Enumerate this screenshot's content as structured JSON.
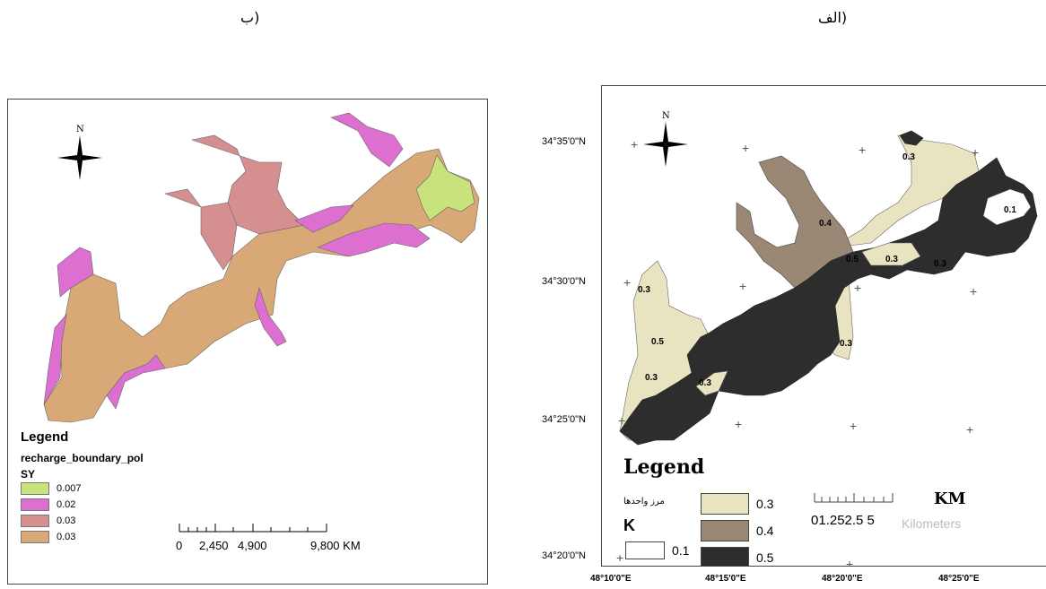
{
  "captions": {
    "left": "ب)",
    "right": "الف)"
  },
  "left_map": {
    "north": "N",
    "legend": {
      "title": "Legend",
      "layer": "recharge_boundary_pol",
      "field": "SY",
      "items": [
        {
          "color": "#c8e27c",
          "label": "0.007"
        },
        {
          "color": "#dc6fd0",
          "label": "0.02"
        },
        {
          "color": "#d68f8f",
          "label": "0.03"
        },
        {
          "color": "#d9a877",
          "label": "0.03"
        }
      ]
    },
    "scalebar": {
      "labels": [
        "0",
        "2,450",
        "4,900",
        "9,800 KM"
      ]
    }
  },
  "right_map": {
    "north": "N",
    "latitudes": [
      "34°35'0\"N",
      "34°30'0\"N",
      "34°25'0\"N",
      "34°20'0\"N"
    ],
    "longitudes": [
      "48°10'0\"E",
      "48°15'0\"E",
      "48°20'0\"E",
      "48°25'0\"E"
    ],
    "zone_labels": [
      "0.3",
      "0.1",
      "0.4",
      "0.3",
      "0.5",
      "0.3",
      "0.3",
      "0.5",
      "0.3",
      "0.3",
      "0.3"
    ],
    "legend": {
      "title": "Legend",
      "arabic_label": "مرز واحدها",
      "field": "K",
      "items": [
        {
          "color": "#ffffff",
          "label": "0.1"
        },
        {
          "color": "#e8e3c0",
          "label": "0.3"
        },
        {
          "color": "#9a8774",
          "label": "0.4"
        },
        {
          "color": "#2d2d2d",
          "label": "0.5"
        }
      ]
    },
    "scale": {
      "unit": "KM",
      "numbers": "01.252.5   5",
      "ghost": "Kilometers"
    }
  }
}
